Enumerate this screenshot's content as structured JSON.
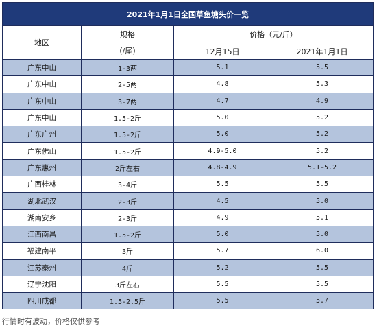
{
  "title": "2021年1月1日全国草鱼塘头价一览",
  "headers": {
    "region": "地区",
    "spec": "规格",
    "spec_unit": "（/尾）",
    "price": "价格（元/斤）",
    "date1": "12月15日",
    "date2": "2021年1月1日"
  },
  "rows": [
    {
      "region": "广东中山",
      "spec": "1-3两",
      "p1": "5.1",
      "p2": "5.5"
    },
    {
      "region": "广东中山",
      "spec": "2-5两",
      "p1": "4.8",
      "p2": "5.3"
    },
    {
      "region": "广东中山",
      "spec": "3-7两",
      "p1": "4.7",
      "p2": "4.9"
    },
    {
      "region": "广东中山",
      "spec": "1.5-2斤",
      "p1": "5.0",
      "p2": "5.2"
    },
    {
      "region": "广东广州",
      "spec": "1.5-2斤",
      "p1": "5.0",
      "p2": "5.2"
    },
    {
      "region": "广东佛山",
      "spec": "1.5-2斤",
      "p1": "4.9-5.0",
      "p2": "5.2"
    },
    {
      "region": "广东惠州",
      "spec": "2斤左右",
      "p1": "4.8-4.9",
      "p2": "5.1-5.2"
    },
    {
      "region": "广西桂林",
      "spec": "3-4斤",
      "p1": "5.5",
      "p2": "5.5"
    },
    {
      "region": "湖北武汉",
      "spec": "2-3斤",
      "p1": "4.5",
      "p2": "5.0"
    },
    {
      "region": "湖南安乡",
      "spec": "2-3斤",
      "p1": "4.9",
      "p2": "5.1"
    },
    {
      "region": "江西南昌",
      "spec": "1.5-2斤",
      "p1": "5.0",
      "p2": "5.0"
    },
    {
      "region": "福建南平",
      "spec": "3斤",
      "p1": "5.7",
      "p2": "6.0"
    },
    {
      "region": "江苏泰州",
      "spec": "4斤",
      "p1": "5.2",
      "p2": "5.5"
    },
    {
      "region": "辽宁沈阳",
      "spec": "3斤左右",
      "p1": "5.5",
      "p2": "5.5"
    },
    {
      "region": "四川成都",
      "spec": "1.5-2.5斤",
      "p1": "5.5",
      "p2": "5.7"
    }
  ],
  "footnote": "行情时有波动，价格仅供参考",
  "colors": {
    "title_bg": "#1f3a7a",
    "stripe": "#b4c4dd",
    "border": "#1f2d5c"
  }
}
